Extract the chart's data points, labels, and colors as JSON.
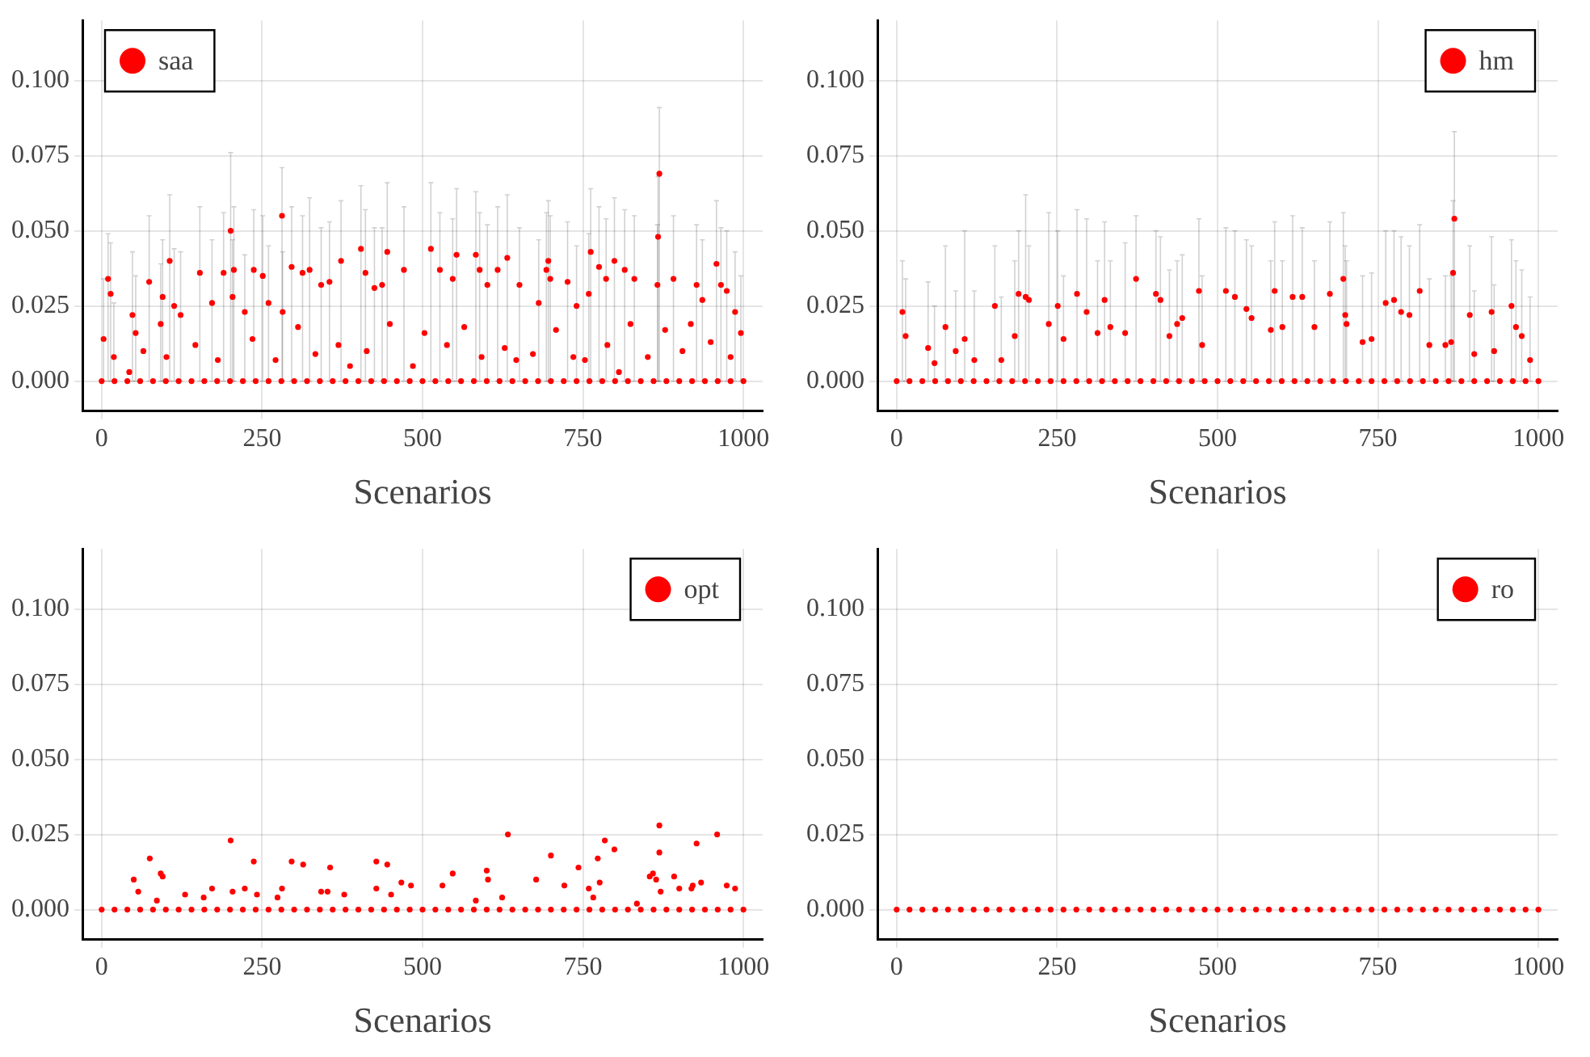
{
  "chart_data": [
    {
      "type": "scatter",
      "xlabel": "Scenarios",
      "legend": "top left",
      "grid": true,
      "marker": "circle",
      "xlim": [
        -30,
        1030
      ],
      "xticks": [
        0,
        250,
        500,
        750,
        1000
      ],
      "ylim": [
        -0.01,
        0.12
      ],
      "yticks": [
        {
          "value": 0,
          "label": "0.000"
        },
        {
          "value": 0.025,
          "label": "0.025"
        },
        {
          "value": 0.05,
          "label": "0.050"
        },
        {
          "value": 0.075,
          "label": "0.075"
        },
        {
          "value": 0.1,
          "label": "0.100"
        }
      ],
      "series": [
        {
          "name": "saa",
          "color": "#ff0000",
          "x": [
            3,
            10,
            14,
            19,
            48,
            53,
            74,
            92,
            95,
            106,
            113,
            123,
            153,
            172,
            190,
            201,
            204,
            206,
            223,
            237,
            251,
            260,
            281,
            282,
            296,
            313,
            324,
            342,
            355,
            373,
            404,
            411,
            425,
            437,
            445,
            471,
            513,
            527,
            547,
            553,
            583,
            589,
            601,
            617,
            632,
            651,
            681,
            693,
            696,
            699,
            726,
            740,
            759,
            762,
            775,
            786,
            799,
            815,
            830,
            869,
            867,
            866,
            891,
            927,
            936,
            958,
            965,
            974,
            987,
            996,
            43,
            65,
            101,
            146,
            181,
            235,
            271,
            306,
            333,
            369,
            387,
            413,
            449,
            485,
            503,
            538,
            565,
            592,
            628,
            646,
            672,
            708,
            735,
            753,
            788,
            806,
            824,
            851,
            878,
            905,
            918,
            949,
            980,
            0,
            20,
            40,
            60,
            80,
            100,
            120,
            140,
            160,
            180,
            200,
            220,
            240,
            260,
            280,
            300,
            320,
            340,
            360,
            380,
            400,
            420,
            440,
            460,
            480,
            500,
            520,
            540,
            560,
            580,
            600,
            620,
            640,
            660,
            680,
            700,
            720,
            740,
            760,
            780,
            800,
            820,
            840,
            860,
            880,
            900,
            920,
            940,
            960,
            980,
            1000
          ],
          "values": [
            0.014,
            0.034,
            0.029,
            0.008,
            0.022,
            0.016,
            0.033,
            0.019,
            0.028,
            0.04,
            0.025,
            0.022,
            0.036,
            0.026,
            0.036,
            0.05,
            0.028,
            0.037,
            0.023,
            0.037,
            0.035,
            0.026,
            0.055,
            0.023,
            0.038,
            0.036,
            0.037,
            0.032,
            0.033,
            0.04,
            0.044,
            0.036,
            0.031,
            0.032,
            0.043,
            0.037,
            0.044,
            0.037,
            0.034,
            0.042,
            0.042,
            0.037,
            0.032,
            0.037,
            0.041,
            0.032,
            0.026,
            0.037,
            0.04,
            0.034,
            0.033,
            0.025,
            0.029,
            0.043,
            0.038,
            0.034,
            0.04,
            0.037,
            0.034,
            0.069,
            0.048,
            0.032,
            0.034,
            0.032,
            0.027,
            0.039,
            0.032,
            0.03,
            0.023,
            0.016,
            0.003,
            0.01,
            0.008,
            0.012,
            0.007,
            0.014,
            0.007,
            0.018,
            0.009,
            0.012,
            0.005,
            0.01,
            0.019,
            0.005,
            0.016,
            0.012,
            0.018,
            0.008,
            0.011,
            0.007,
            0.009,
            0.017,
            0.008,
            0.007,
            0.012,
            0.003,
            0.019,
            0.008,
            0.017,
            0.01,
            0.019,
            0.013,
            0.008,
            0,
            0,
            0,
            0,
            0,
            0,
            0,
            0,
            0,
            0,
            0,
            0,
            0,
            0,
            0,
            0,
            0,
            0,
            0,
            0,
            0,
            0,
            0,
            0,
            0,
            0,
            0,
            0,
            0,
            0,
            0,
            0,
            0,
            0,
            0,
            0,
            0,
            0,
            0,
            0,
            0,
            0,
            0,
            0,
            0,
            0,
            0,
            0,
            0,
            0,
            0
          ],
          "errors": [
            [
              0,
              0.034
            ],
            [
              0,
              0.049
            ],
            [
              0,
              0.046
            ],
            [
              0,
              0.026
            ],
            [
              0,
              0.043
            ],
            [
              0,
              0.035
            ],
            [
              0,
              0.055
            ],
            [
              0,
              0.039
            ],
            [
              0,
              0.047
            ],
            [
              0,
              0.062
            ],
            [
              0,
              0.044
            ],
            [
              0,
              0.043
            ],
            [
              0,
              0.058
            ],
            [
              0,
              0.047
            ],
            [
              0,
              0.056
            ],
            [
              0,
              0.076
            ],
            [
              0,
              0.047
            ],
            [
              0,
              0.058
            ],
            [
              0,
              0.042
            ],
            [
              0,
              0.057
            ],
            [
              0,
              0.055
            ],
            [
              0,
              0.045
            ],
            [
              0,
              0.071
            ],
            [
              0,
              0.043
            ],
            [
              0,
              0.058
            ],
            [
              0,
              0.055
            ],
            [
              0,
              0.061
            ],
            [
              0,
              0.051
            ],
            [
              0,
              0.053
            ],
            [
              0,
              0.06
            ],
            [
              0,
              0.065
            ],
            [
              0,
              0.057
            ],
            [
              0,
              0.051
            ],
            [
              0,
              0.051
            ],
            [
              0,
              0.066
            ],
            [
              0,
              0.058
            ],
            [
              0,
              0.066
            ],
            [
              0,
              0.056
            ],
            [
              0,
              0.054
            ],
            [
              0,
              0.064
            ],
            [
              0,
              0.063
            ],
            [
              0,
              0.056
            ],
            [
              0,
              0.052
            ],
            [
              0,
              0.058
            ],
            [
              0,
              0.062
            ],
            [
              0,
              0.051
            ],
            [
              0,
              0.047
            ],
            [
              0,
              0.056
            ],
            [
              0,
              0.06
            ],
            [
              0,
              0.055
            ],
            [
              0,
              0.053
            ],
            [
              0,
              0.045
            ],
            [
              0,
              0.049
            ],
            [
              0,
              0.064
            ],
            [
              0,
              0.058
            ],
            [
              0,
              0.054
            ],
            [
              0,
              0.061
            ],
            [
              0,
              0.057
            ],
            [
              0,
              0.055
            ],
            [
              0,
              0.091
            ],
            [
              0,
              0.068
            ],
            [
              0,
              0.052
            ],
            [
              0,
              0.055
            ],
            [
              0,
              0.052
            ],
            [
              0,
              0.047
            ],
            [
              0,
              0.06
            ],
            [
              0,
              0.051
            ],
            [
              0,
              0.05
            ],
            [
              0,
              0.043
            ],
            [
              0,
              0.035
            ],
            null,
            null,
            null,
            null,
            null,
            null,
            null,
            null,
            null,
            null,
            null,
            null,
            null,
            null,
            null,
            null,
            null,
            null,
            null,
            null,
            null,
            null,
            null,
            null,
            null,
            null,
            null,
            null,
            null,
            null,
            null,
            null,
            null,
            null,
            null,
            null,
            null,
            null,
            null,
            null,
            null,
            null,
            null,
            null,
            null,
            null,
            null,
            null,
            null,
            null,
            null,
            null,
            null,
            null,
            null,
            null,
            null,
            null,
            null,
            null,
            null,
            null,
            null,
            null,
            null,
            null,
            null,
            null,
            null,
            null,
            null,
            null,
            null,
            null,
            null,
            null,
            null,
            null,
            null,
            null,
            null,
            null,
            null,
            null
          ]
        }
      ]
    },
    {
      "type": "scatter",
      "xlabel": "Scenarios",
      "legend": "top right",
      "grid": true,
      "marker": "circle",
      "xlim": [
        -30,
        1030
      ],
      "xticks": [
        0,
        250,
        500,
        750,
        1000
      ],
      "ylim": [
        -0.01,
        0.12
      ],
      "yticks": [
        {
          "value": 0,
          "label": "0.000"
        },
        {
          "value": 0.025,
          "label": "0.025"
        },
        {
          "value": 0.05,
          "label": "0.050"
        },
        {
          "value": 0.075,
          "label": "0.075"
        },
        {
          "value": 0.1,
          "label": "0.100"
        }
      ],
      "series": [
        {
          "name": "hm",
          "color": "#ff0000",
          "x": [
            9,
            14,
            49,
            59,
            76,
            92,
            106,
            121,
            153,
            163,
            184,
            190,
            201,
            206,
            237,
            251,
            260,
            281,
            296,
            313,
            324,
            333,
            356,
            373,
            404,
            411,
            425,
            437,
            445,
            471,
            476,
            513,
            527,
            545,
            553,
            583,
            589,
            601,
            617,
            632,
            651,
            675,
            696,
            699,
            701,
            726,
            740,
            762,
            775,
            786,
            799,
            815,
            830,
            855,
            869,
            867,
            864,
            893,
            900,
            927,
            931,
            958,
            965,
            974,
            987,
            0,
            20,
            40,
            60,
            80,
            100,
            120,
            140,
            160,
            180,
            200,
            220,
            240,
            260,
            280,
            300,
            320,
            340,
            360,
            380,
            400,
            420,
            440,
            460,
            480,
            500,
            520,
            540,
            560,
            580,
            600,
            620,
            640,
            660,
            680,
            700,
            720,
            740,
            760,
            780,
            800,
            820,
            840,
            860,
            880,
            900,
            920,
            940,
            960,
            980,
            1000
          ],
          "values": [
            0.023,
            0.015,
            0.011,
            0.006,
            0.018,
            0.01,
            0.014,
            0.007,
            0.025,
            0.007,
            0.015,
            0.029,
            0.028,
            0.027,
            0.019,
            0.025,
            0.014,
            0.029,
            0.023,
            0.016,
            0.027,
            0.018,
            0.016,
            0.034,
            0.029,
            0.027,
            0.015,
            0.019,
            0.021,
            0.03,
            0.012,
            0.03,
            0.028,
            0.024,
            0.021,
            0.017,
            0.03,
            0.018,
            0.028,
            0.028,
            0.018,
            0.029,
            0.034,
            0.022,
            0.019,
            0.013,
            0.014,
            0.026,
            0.027,
            0.023,
            0.022,
            0.03,
            0.012,
            0.012,
            0.054,
            0.036,
            0.013,
            0.022,
            0.009,
            0.023,
            0.01,
            0.025,
            0.018,
            0.015,
            0.007,
            0,
            0,
            0,
            0,
            0,
            0,
            0,
            0,
            0,
            0,
            0,
            0,
            0,
            0,
            0,
            0,
            0,
            0,
            0,
            0,
            0,
            0,
            0,
            0,
            0,
            0,
            0,
            0,
            0,
            0,
            0,
            0,
            0,
            0,
            0,
            0,
            0,
            0,
            0,
            0,
            0,
            0,
            0,
            0,
            0,
            0,
            0,
            0,
            0,
            0,
            0
          ],
          "errors": [
            [
              0,
              0.04
            ],
            [
              0,
              0.034
            ],
            [
              0,
              0.033
            ],
            [
              0,
              0.025
            ],
            [
              0,
              0.045
            ],
            [
              0,
              0.03
            ],
            [
              0,
              0.05
            ],
            [
              0,
              0.03
            ],
            [
              0,
              0.045
            ],
            [
              0,
              0.028
            ],
            [
              0,
              0.04
            ],
            [
              0,
              0.05
            ],
            [
              0,
              0.062
            ],
            [
              0,
              0.045
            ],
            [
              0,
              0.056
            ],
            [
              0,
              0.05
            ],
            [
              0,
              0.035
            ],
            [
              0,
              0.057
            ],
            [
              0,
              0.054
            ],
            [
              0,
              0.04
            ],
            [
              0,
              0.053
            ],
            [
              0,
              0.04
            ],
            [
              0,
              0.046
            ],
            [
              0,
              0.055
            ],
            [
              0,
              0.05
            ],
            [
              0,
              0.048
            ],
            [
              0,
              0.037
            ],
            [
              0,
              0.04
            ],
            [
              0,
              0.042
            ],
            [
              0,
              0.054
            ],
            [
              0,
              0.035
            ],
            [
              0,
              0.051
            ],
            [
              0,
              0.05
            ],
            [
              0,
              0.047
            ],
            [
              0,
              0.045
            ],
            [
              0,
              0.04
            ],
            [
              0,
              0.053
            ],
            [
              0,
              0.04
            ],
            [
              0,
              0.055
            ],
            [
              0,
              0.051
            ],
            [
              0,
              0.04
            ],
            [
              0,
              0.053
            ],
            [
              0,
              0.056
            ],
            [
              0,
              0.045
            ],
            [
              0,
              0.04
            ],
            [
              0,
              0.035
            ],
            [
              0,
              0.036
            ],
            [
              0,
              0.05
            ],
            [
              0,
              0.05
            ],
            [
              0,
              0.048
            ],
            [
              0,
              0.045
            ],
            [
              0,
              0.052
            ],
            [
              0,
              0.034
            ],
            [
              0,
              0.035
            ],
            [
              0,
              0.083
            ],
            [
              0,
              0.06
            ],
            [
              0,
              0.035
            ],
            [
              0,
              0.045
            ],
            [
              0,
              0.03
            ],
            [
              0,
              0.048
            ],
            [
              0,
              0.032
            ],
            [
              0,
              0.047
            ],
            [
              0,
              0.04
            ],
            [
              0,
              0.037
            ],
            [
              0,
              0.028
            ],
            null,
            null,
            null,
            null,
            null,
            null,
            null,
            null,
            null,
            null,
            null,
            null,
            null,
            null,
            null,
            null,
            null,
            null,
            null,
            null,
            null,
            null,
            null,
            null,
            null,
            null,
            null,
            null,
            null,
            null,
            null,
            null,
            null,
            null,
            null,
            null,
            null,
            null,
            null,
            null,
            null,
            null,
            null,
            null,
            null,
            null,
            null,
            null,
            null,
            null,
            null
          ]
        }
      ]
    },
    {
      "type": "scatter",
      "xlabel": "Scenarios",
      "legend": "top right",
      "grid": true,
      "marker": "circle",
      "xlim": [
        -30,
        1030
      ],
      "xticks": [
        0,
        250,
        500,
        750,
        1000
      ],
      "ylim": [
        -0.01,
        0.12
      ],
      "yticks": [
        {
          "value": 0,
          "label": "0.000"
        },
        {
          "value": 0.025,
          "label": "0.025"
        },
        {
          "value": 0.05,
          "label": "0.050"
        },
        {
          "value": 0.075,
          "label": "0.075"
        },
        {
          "value": 0.1,
          "label": "0.100"
        }
      ],
      "series": [
        {
          "name": "opt",
          "color": "#ff0000",
          "x": [
            50,
            57,
            75,
            86,
            92,
            95,
            130,
            159,
            172,
            201,
            204,
            223,
            237,
            242,
            274,
            281,
            296,
            314,
            342,
            352,
            356,
            378,
            428,
            428,
            445,
            451,
            467,
            482,
            531,
            547,
            583,
            600,
            602,
            624,
            633,
            677,
            700,
            721,
            743,
            759,
            766,
            773,
            776,
            784,
            799,
            834,
            854,
            859,
            864,
            869,
            869,
            871,
            892,
            900,
            919,
            921,
            927,
            934,
            959,
            974,
            987,
            0,
            20,
            40,
            60,
            80,
            100,
            120,
            140,
            160,
            180,
            200,
            220,
            240,
            260,
            280,
            300,
            320,
            340,
            360,
            380,
            400,
            420,
            440,
            460,
            480,
            500,
            520,
            540,
            560,
            580,
            600,
            620,
            640,
            660,
            680,
            700,
            720,
            740,
            760,
            780,
            800,
            820,
            840,
            860,
            880,
            900,
            920,
            940,
            960,
            980,
            1000
          ],
          "values": [
            0.01,
            0.006,
            0.017,
            0.003,
            0.012,
            0.011,
            0.005,
            0.004,
            0.007,
            0.023,
            0.006,
            0.007,
            0.016,
            0.005,
            0.004,
            0.007,
            0.016,
            0.015,
            0.006,
            0.006,
            0.014,
            0.005,
            0.016,
            0.007,
            0.015,
            0.005,
            0.009,
            0.008,
            0.008,
            0.012,
            0.003,
            0.013,
            0.01,
            0.004,
            0.025,
            0.01,
            0.018,
            0.008,
            0.014,
            0.007,
            0.004,
            0.017,
            0.009,
            0.023,
            0.02,
            0.002,
            0.011,
            0.012,
            0.01,
            0.028,
            0.019,
            0.006,
            0.011,
            0.007,
            0.007,
            0.008,
            0.022,
            0.009,
            0.025,
            0.008,
            0.007,
            0,
            0,
            0,
            0,
            0,
            0,
            0,
            0,
            0,
            0,
            0,
            0,
            0,
            0,
            0,
            0,
            0,
            0,
            0,
            0,
            0,
            0,
            0,
            0,
            0,
            0,
            0,
            0,
            0,
            0,
            0,
            0,
            0,
            0,
            0,
            0,
            0,
            0,
            0,
            0,
            0,
            0,
            0,
            0,
            0,
            0,
            0,
            0,
            0,
            0,
            0
          ]
        }
      ]
    },
    {
      "type": "scatter",
      "xlabel": "Scenarios",
      "legend": "top right",
      "grid": true,
      "marker": "circle",
      "xlim": [
        -30,
        1030
      ],
      "xticks": [
        0,
        250,
        500,
        750,
        1000
      ],
      "ylim": [
        -0.01,
        0.12
      ],
      "yticks": [
        {
          "value": 0,
          "label": "0.000"
        },
        {
          "value": 0.025,
          "label": "0.025"
        },
        {
          "value": 0.05,
          "label": "0.050"
        },
        {
          "value": 0.075,
          "label": "0.075"
        },
        {
          "value": 0.1,
          "label": "0.100"
        }
      ],
      "series": [
        {
          "name": "ro",
          "color": "#ff0000",
          "x": [
            0,
            20,
            40,
            60,
            80,
            100,
            120,
            140,
            160,
            180,
            200,
            220,
            240,
            260,
            280,
            300,
            320,
            340,
            360,
            380,
            400,
            420,
            440,
            460,
            480,
            500,
            520,
            540,
            560,
            580,
            600,
            620,
            640,
            660,
            680,
            700,
            720,
            740,
            760,
            780,
            800,
            820,
            840,
            860,
            880,
            900,
            920,
            940,
            960,
            980,
            1000
          ],
          "values": [
            0,
            0,
            0,
            0,
            0,
            0,
            0,
            0,
            0,
            0,
            0,
            0,
            0,
            0,
            0,
            0,
            0,
            0,
            0,
            0,
            0,
            0,
            0,
            0,
            0,
            0,
            0,
            0,
            0,
            0,
            0,
            0,
            0,
            0,
            0,
            0,
            0,
            0,
            0,
            0,
            0,
            0,
            0,
            0,
            0,
            0,
            0,
            0,
            0,
            0,
            0
          ]
        }
      ]
    }
  ]
}
